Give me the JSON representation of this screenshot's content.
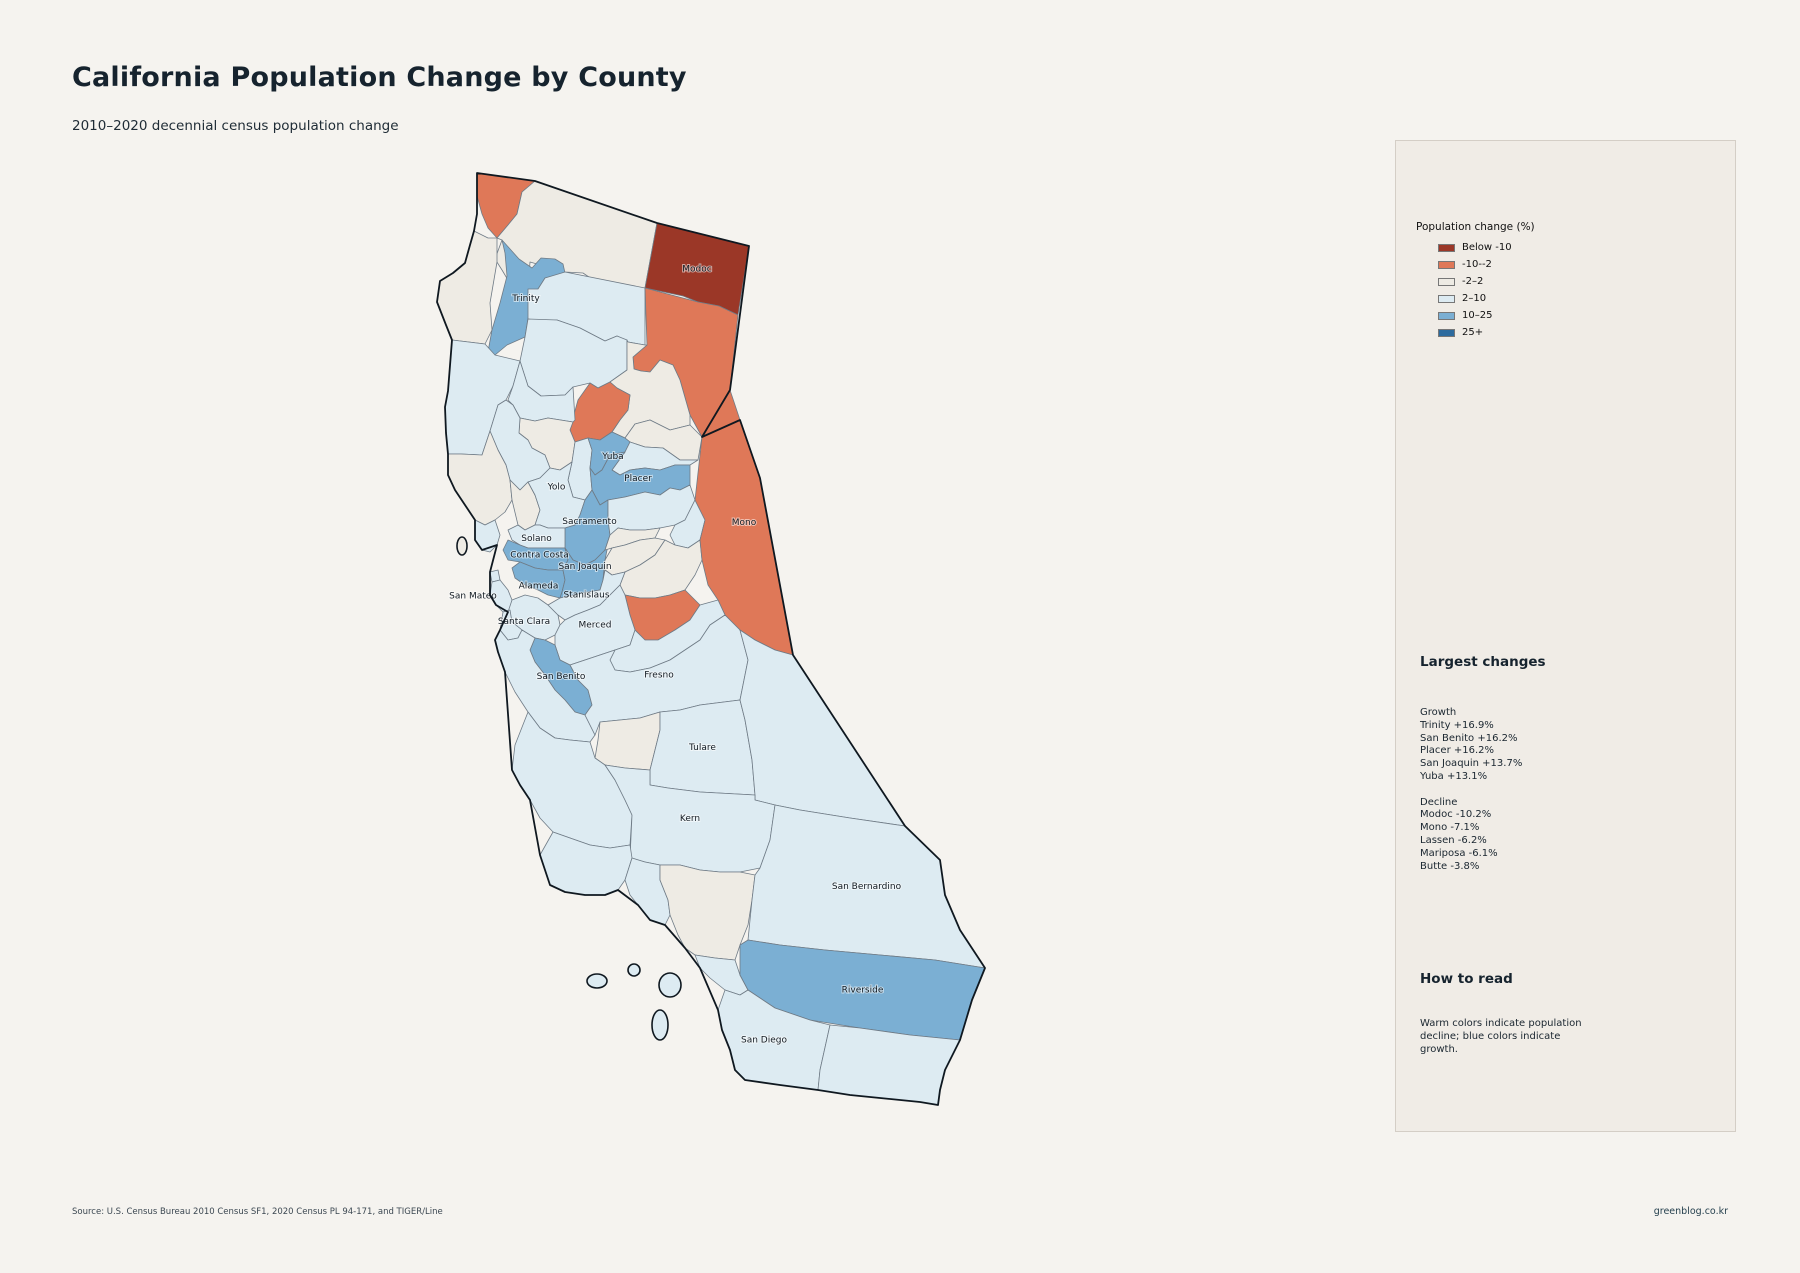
{
  "title": "California Population Change by County",
  "subtitle": "2010–2020 decennial census population change",
  "colors": {
    "below_-10": "#9b3727",
    "-10--2": "#df7858",
    "-2-2": "#eeebe4",
    "2-10": "#ddebf2",
    "10-25": "#7bafd3",
    "25+": "#2d6b9e"
  },
  "legend": {
    "title": "Population change (%)",
    "items": [
      {
        "label": "Below -10",
        "key": "below_-10"
      },
      {
        "label": "-10--2",
        "key": "-10--2"
      },
      {
        "label": "-2–2",
        "key": "-2-2"
      },
      {
        "label": "2–10",
        "key": "2-10"
      },
      {
        "label": "10–25",
        "key": "10-25"
      },
      {
        "label": "25+",
        "key": "25+"
      }
    ]
  },
  "largest_changes": {
    "heading": "Largest changes",
    "growth_label": "Growth",
    "growth": [
      "Trinity  +16.9%",
      "San Benito  +16.2%",
      "Placer  +16.2%",
      "San Joaquin  +13.7%",
      "Yuba  +13.1%"
    ],
    "decline_label": "Decline",
    "decline": [
      "Modoc  -10.2%",
      "Mono  -7.1%",
      "Lassen  -6.2%",
      "Mariposa  -6.1%",
      "Butte  -3.8%"
    ]
  },
  "how_to_read": {
    "heading": "How to read",
    "text": "Warm colors indicate population decline; blue colors indicate growth."
  },
  "counties": [
    {
      "id": "del-norte",
      "label": "",
      "cat": "-10--2"
    },
    {
      "id": "siskiyou",
      "label": "",
      "cat": "-2-2"
    },
    {
      "id": "modoc",
      "label": "Modoc",
      "cat": "below_-10"
    },
    {
      "id": "humboldt",
      "label": "",
      "cat": "-2-2"
    },
    {
      "id": "trinity",
      "label": "Trinity",
      "cat": "10-25"
    },
    {
      "id": "shasta",
      "label": "",
      "cat": "2-10"
    },
    {
      "id": "lassen",
      "label": "",
      "cat": "-10--2"
    },
    {
      "id": "mendocino",
      "label": "",
      "cat": "2-10"
    },
    {
      "id": "tehama",
      "label": "",
      "cat": "2-10"
    },
    {
      "id": "plumas",
      "label": "",
      "cat": "-2-2"
    },
    {
      "id": "butte",
      "label": "",
      "cat": "-10--2"
    },
    {
      "id": "glenn",
      "label": "",
      "cat": "2-10"
    },
    {
      "id": "colusa",
      "label": "",
      "cat": "-2-2"
    },
    {
      "id": "sierra",
      "label": "",
      "cat": "-2-2"
    },
    {
      "id": "sutter",
      "label": "",
      "cat": "2-10"
    },
    {
      "id": "yuba",
      "label": "Yuba",
      "cat": "10-25"
    },
    {
      "id": "nevada",
      "label": "",
      "cat": "2-10"
    },
    {
      "id": "placer",
      "label": "Placer",
      "cat": "10-25"
    },
    {
      "id": "lake",
      "label": "",
      "cat": "2-10"
    },
    {
      "id": "sonoma",
      "label": "",
      "cat": "-2-2"
    },
    {
      "id": "napa",
      "label": "",
      "cat": "-2-2"
    },
    {
      "id": "yolo",
      "label": "Yolo",
      "cat": "2-10"
    },
    {
      "id": "sacramento",
      "label": "Sacramento",
      "cat": "10-25"
    },
    {
      "id": "el-dorado",
      "label": "",
      "cat": "2-10"
    },
    {
      "id": "marin",
      "label": "",
      "cat": "2-10"
    },
    {
      "id": "solano",
      "label": "Solano",
      "cat": "2-10"
    },
    {
      "id": "contra-costa",
      "label": "Contra Costa",
      "cat": "10-25"
    },
    {
      "id": "alameda",
      "label": "Alameda",
      "cat": "10-25"
    },
    {
      "id": "san-joaquin",
      "label": "San Joaquin",
      "cat": "10-25"
    },
    {
      "id": "amador",
      "label": "",
      "cat": "-2-2"
    },
    {
      "id": "alpine",
      "label": "",
      "cat": "2-10"
    },
    {
      "id": "calaveras",
      "label": "",
      "cat": "-2-2"
    },
    {
      "id": "tuolumne",
      "label": "",
      "cat": "-2-2"
    },
    {
      "id": "mono",
      "label": "Mono",
      "cat": "-10--2"
    },
    {
      "id": "san-francisco",
      "label": "",
      "cat": "2-10"
    },
    {
      "id": "san-mateo",
      "label": "San Mateo",
      "cat": "2-10"
    },
    {
      "id": "santa-clara",
      "label": "Santa Clara",
      "cat": "2-10"
    },
    {
      "id": "stanislaus",
      "label": "Stanislaus",
      "cat": "2-10"
    },
    {
      "id": "mariposa",
      "label": "",
      "cat": "-10--2"
    },
    {
      "id": "santa-cruz",
      "label": "",
      "cat": "2-10"
    },
    {
      "id": "merced",
      "label": "Merced",
      "cat": "2-10"
    },
    {
      "id": "madera",
      "label": "",
      "cat": "2-10"
    },
    {
      "id": "san-benito",
      "label": "San Benito",
      "cat": "10-25"
    },
    {
      "id": "monterey",
      "label": "",
      "cat": "2-10"
    },
    {
      "id": "fresno",
      "label": "Fresno",
      "cat": "2-10"
    },
    {
      "id": "kings",
      "label": "",
      "cat": "-2-2"
    },
    {
      "id": "tulare",
      "label": "Tulare",
      "cat": "2-10"
    },
    {
      "id": "inyo",
      "label": "",
      "cat": "2-10"
    },
    {
      "id": "san-luis-obispo",
      "label": "",
      "cat": "2-10"
    },
    {
      "id": "kern",
      "label": "Kern",
      "cat": "2-10"
    },
    {
      "id": "santa-barbara",
      "label": "",
      "cat": "2-10"
    },
    {
      "id": "ventura",
      "label": "",
      "cat": "2-10"
    },
    {
      "id": "los-angeles",
      "label": "",
      "cat": "-2-2"
    },
    {
      "id": "san-bernardino",
      "label": "San Bernardino",
      "cat": "2-10"
    },
    {
      "id": "orange",
      "label": "",
      "cat": "2-10"
    },
    {
      "id": "riverside",
      "label": "Riverside",
      "cat": "10-25"
    },
    {
      "id": "san-diego",
      "label": "San Diego",
      "cat": "2-10"
    },
    {
      "id": "imperial",
      "label": "",
      "cat": "2-10"
    }
  ],
  "source": "Source: U.S. Census Bureau 2010 Census SF1, 2020 Census PL 94-171, and TIGER/Line",
  "credit": "greenblog.co.kr"
}
